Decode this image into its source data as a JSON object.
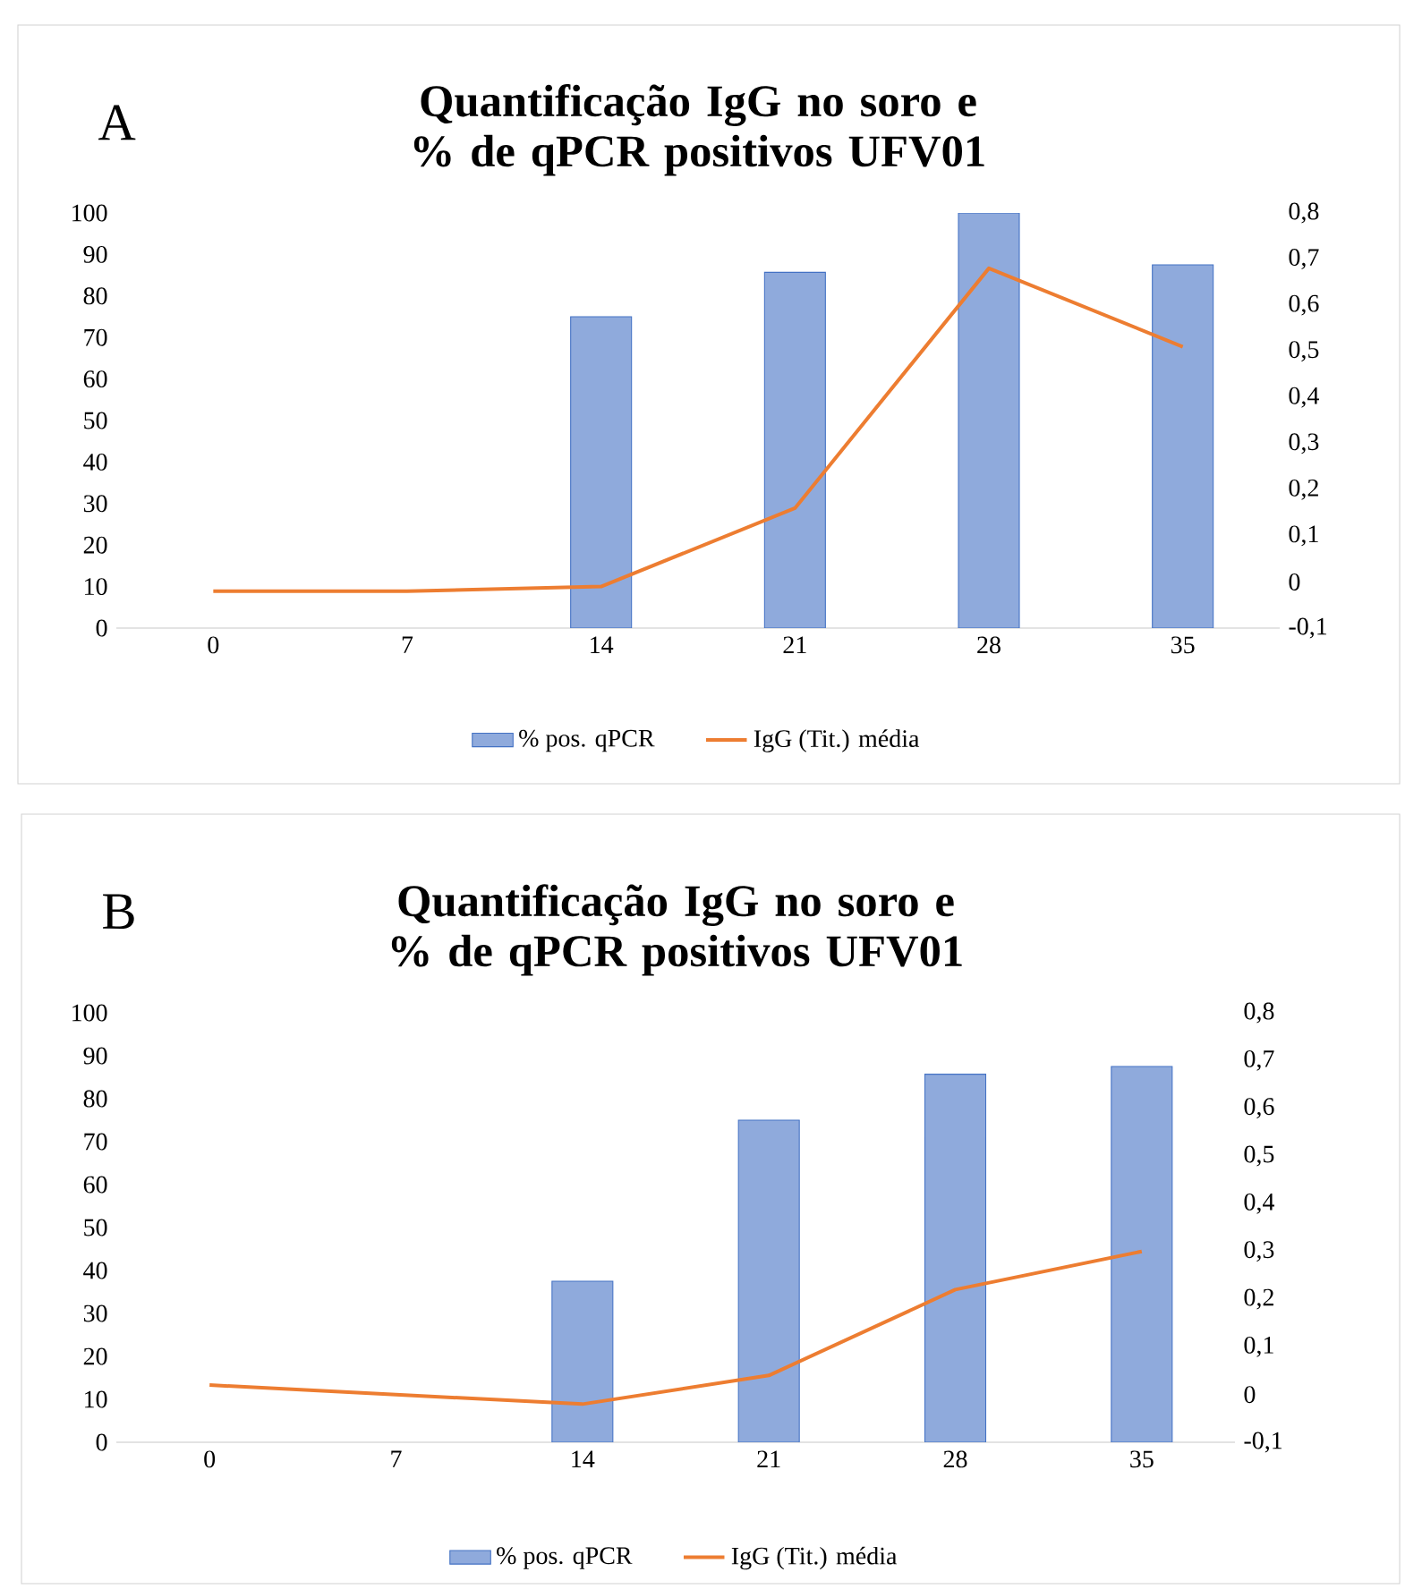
{
  "chart_data": [
    {
      "type": "bar",
      "title": "Quantificação  IgG no soro e % de qPCR positivos  UFV01",
      "annotations": [
        "A"
      ],
      "categories": [
        "0",
        "7",
        "14",
        "21",
        "28",
        "35"
      ],
      "series": [
        {
          "name": "% pos. qPCR",
          "color": "#8faadc",
          "values": [
            null,
            null,
            75,
            85.7,
            100,
            87.5
          ]
        },
        {
          "name": "IgG (Tit.) média",
          "type": "line",
          "axis": "y2",
          "color": "#ed7d31",
          "values": [
            -0.02,
            -0.02,
            -0.01,
            0.16,
            0.68,
            0.51
          ]
        }
      ],
      "ylim": [
        0,
        100
      ],
      "yticks": [
        0,
        10,
        20,
        30,
        40,
        50,
        60,
        70,
        80,
        90,
        100
      ],
      "y2lim": [
        -0.1,
        0.8
      ],
      "y2ticks": [
        {
          "value": -0.1,
          "label": "-0,1"
        },
        0,
        {
          "value": 0.1,
          "label": "0,1"
        },
        {
          "value": 0.2,
          "label": "0,2"
        },
        {
          "value": 0.3,
          "label": "0,3"
        },
        {
          "value": 0.4,
          "label": "0,4"
        },
        {
          "value": 0.5,
          "label": "0,5"
        },
        {
          "value": 0.6,
          "label": "0,6"
        },
        {
          "value": 0.7,
          "label": "0,7"
        },
        {
          "value": 0.8,
          "label": "0,8"
        }
      ],
      "legend": "bottom"
    },
    {
      "type": "bar",
      "title": "Quantificação  IgG no soro e % de qPCR positivos  UFV01",
      "annotations": [
        "B"
      ],
      "categories": [
        "0",
        "7",
        "14",
        "21",
        "28",
        "35"
      ],
      "series": [
        {
          "name": "% pos. qPCR",
          "color": "#8faadc",
          "values": [
            null,
            null,
            37.5,
            75,
            85.7,
            87.5
          ]
        },
        {
          "name": "IgG (Tit.) média",
          "type": "line",
          "axis": "y2",
          "color": "#ed7d31",
          "values": [
            0.02,
            0,
            -0.02,
            0.04,
            0.22,
            0.3
          ]
        }
      ],
      "ylim": [
        0,
        100
      ],
      "yticks": [
        0,
        10,
        20,
        30,
        40,
        50,
        60,
        70,
        80,
        90,
        100
      ],
      "y2lim": [
        -0.1,
        0.8
      ],
      "y2ticks": [
        {
          "value": -0.1,
          "label": "-0,1"
        },
        0,
        {
          "value": 0.1,
          "label": "0,1"
        },
        {
          "value": 0.2,
          "label": "0,2"
        },
        {
          "value": 0.3,
          "label": "0,3"
        },
        {
          "value": 0.4,
          "label": "0,4"
        },
        {
          "value": 0.5,
          "label": "0,5"
        },
        {
          "value": 0.6,
          "label": "0,6"
        },
        {
          "value": 0.7,
          "label": "0,7"
        },
        {
          "value": 0.8,
          "label": "0,8"
        }
      ],
      "legend": "bottom"
    }
  ]
}
